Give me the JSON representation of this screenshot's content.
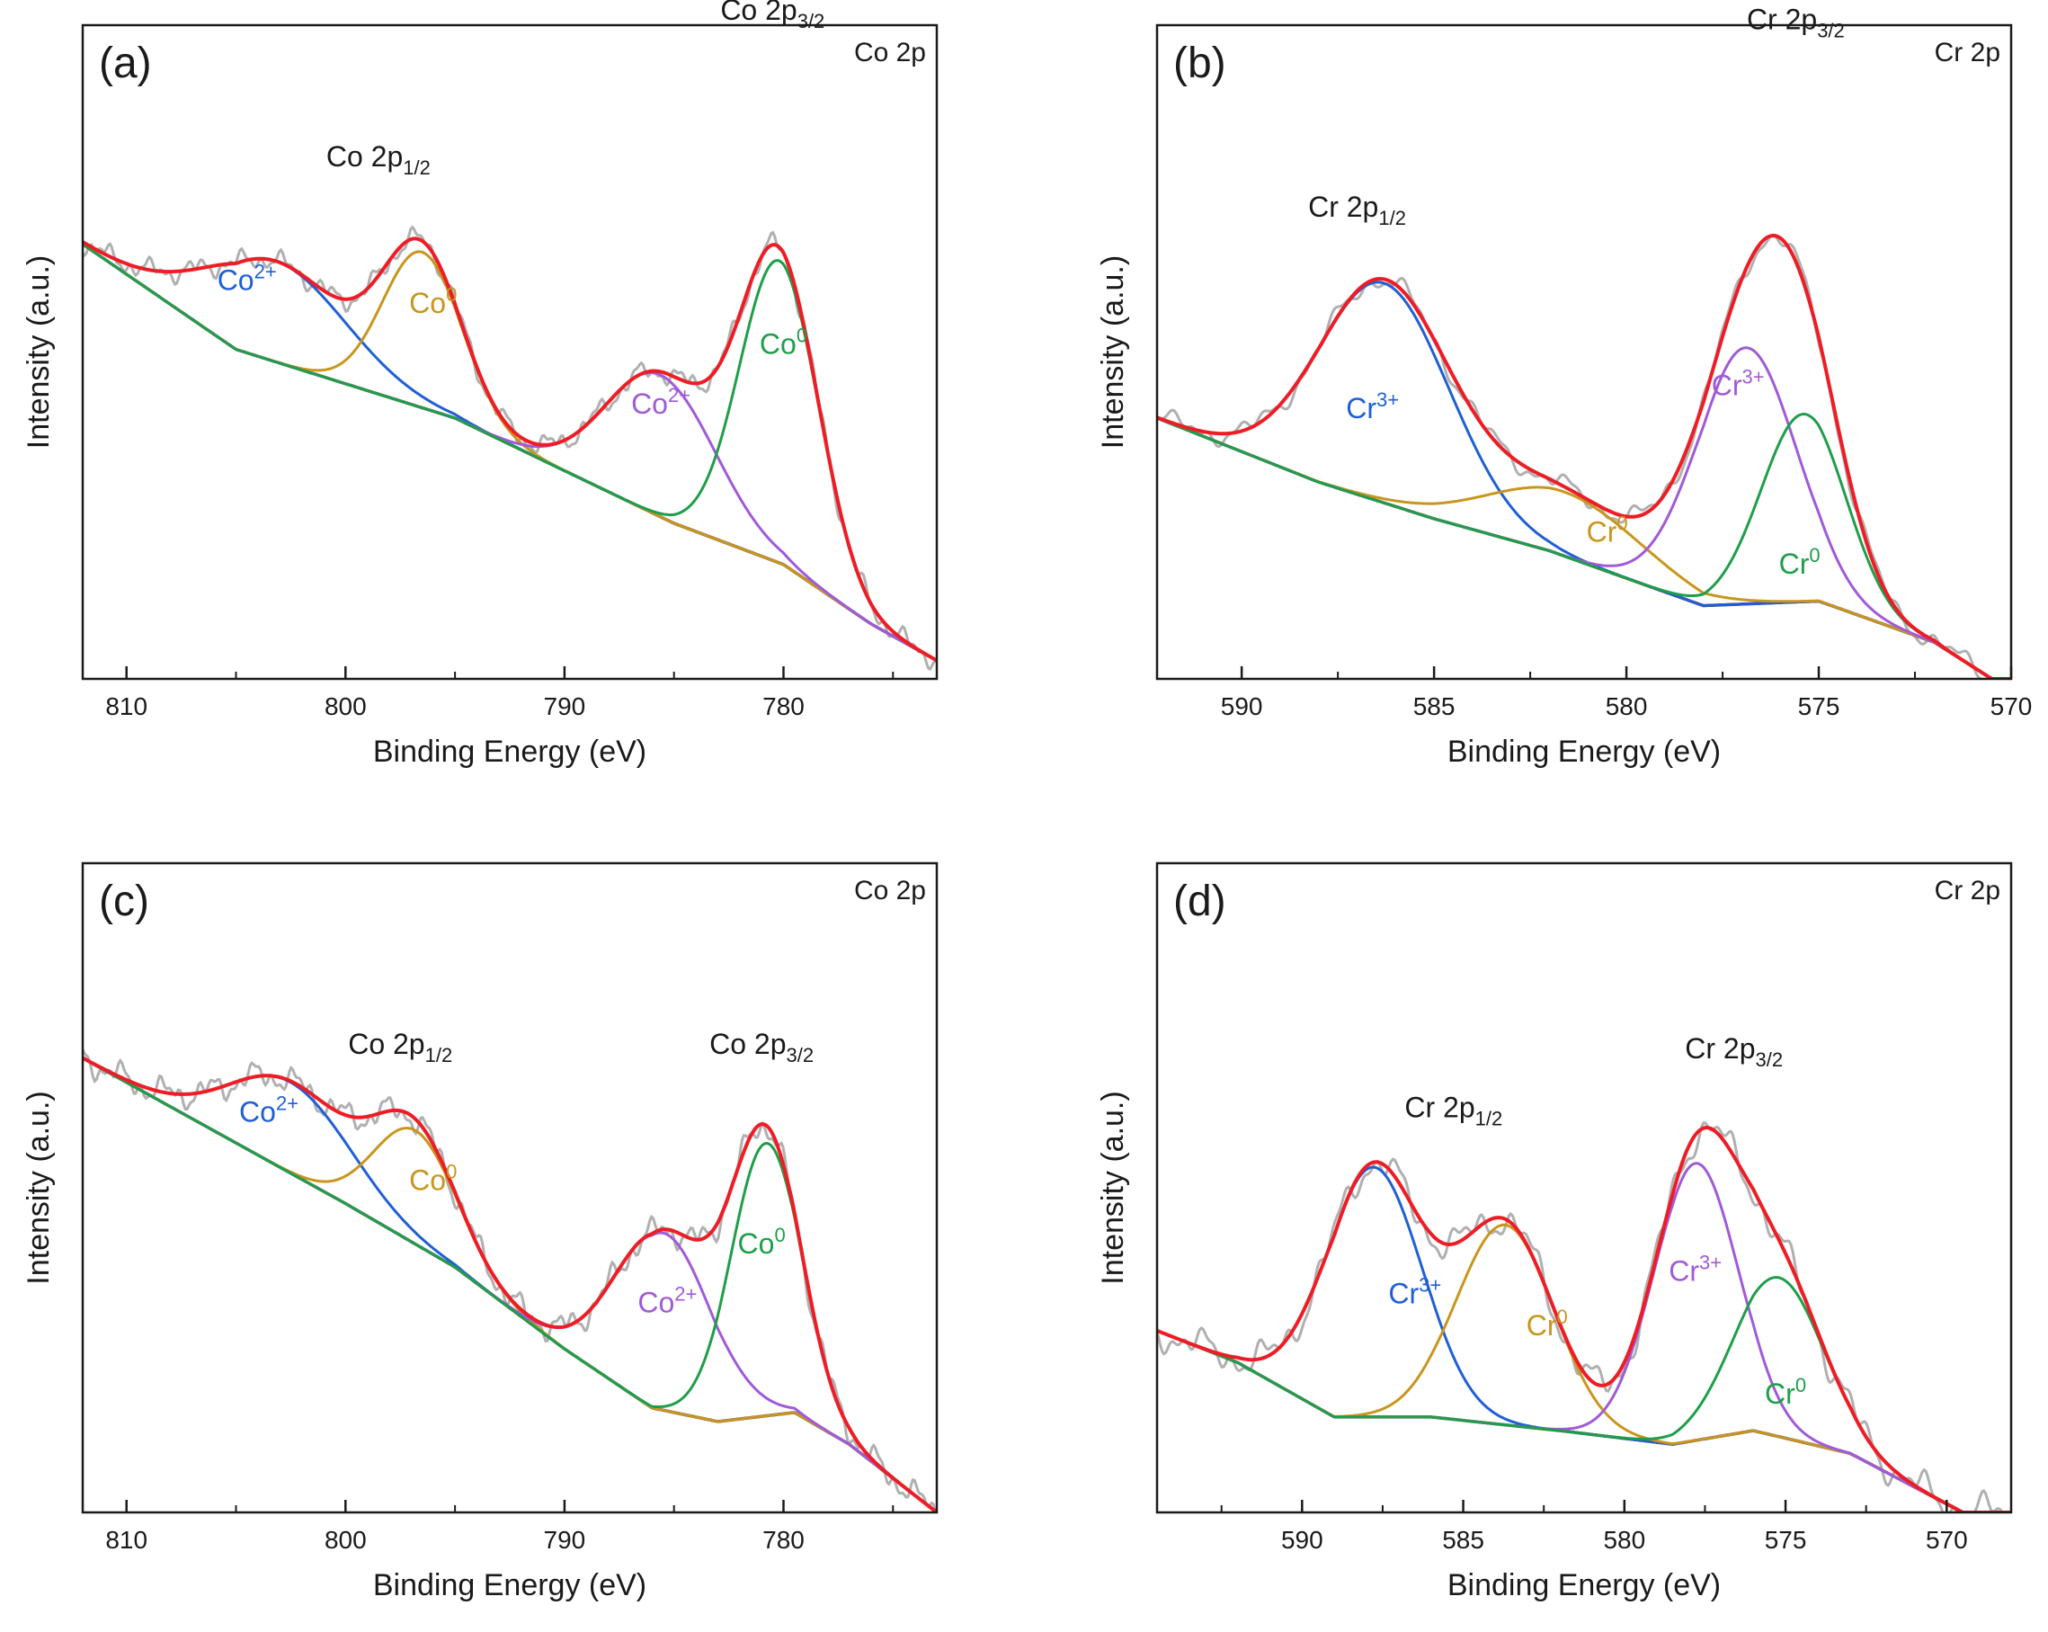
{
  "figure": {
    "colors": {
      "raw": "#b0b0b0",
      "envelope": "#ee1c25",
      "background": "#6b3a3a",
      "blue": "#1f5fd6",
      "orange": "#c8961e",
      "purple": "#a05ad8",
      "green": "#1e9e4a"
    }
  },
  "chart_data": [
    {
      "type": "line",
      "panel": "(a)",
      "corner": "Co 2p",
      "xlabel": "Binding Energy (eV)",
      "ylabel": "Intensity (a.u.)",
      "xlim": [
        812,
        773
      ],
      "ylim": [
        0,
        1
      ],
      "xticks": [
        "810",
        "800",
        "790",
        "780"
      ],
      "xtick_values": [
        810,
        800,
        790,
        780
      ],
      "background": {
        "x": [
          812,
          805,
          795,
          785,
          780,
          776,
          773
        ],
        "y": [
          0.95,
          0.72,
          0.57,
          0.34,
          0.25,
          0.12,
          0.04
        ]
      },
      "raw_noise": 0.03,
      "components": [
        {
          "name": "Co²⁺",
          "color_key": "blue",
          "center": 803.2,
          "height": 0.22,
          "width": 3.2
        },
        {
          "name": "Co⁰",
          "color_key": "orange",
          "center": 796.5,
          "height": 0.34,
          "width": 1.8
        },
        {
          "name": "Co²⁺",
          "color_key": "purple",
          "center": 785.6,
          "height": 0.31,
          "width": 2.5
        },
        {
          "name": "Co⁰",
          "color_key": "green",
          "center": 780.2,
          "height": 0.66,
          "width": 1.8
        }
      ],
      "annotations": [
        {
          "base": "Co 2p",
          "sub": "1/2",
          "sup": "",
          "x": 798.5,
          "y": 1.12,
          "color_key": "text"
        },
        {
          "base": "Co 2p",
          "sub": "3/2",
          "sup": "",
          "x": 780.5,
          "y": 1.44,
          "color_key": "text"
        },
        {
          "base": "Co",
          "sub": "",
          "sup": "2+",
          "x": 804.5,
          "y": 0.85,
          "color_key": "blue"
        },
        {
          "base": "Co",
          "sub": "",
          "sup": "0",
          "x": 796.0,
          "y": 0.8,
          "color_key": "orange"
        },
        {
          "base": "Co",
          "sub": "",
          "sup": "2+",
          "x": 785.6,
          "y": 0.58,
          "color_key": "purple"
        },
        {
          "base": "Co",
          "sub": "",
          "sup": "0",
          "x": 780.0,
          "y": 0.71,
          "color_key": "green"
        }
      ]
    },
    {
      "type": "line",
      "panel": "(b)",
      "corner": "Cr 2p",
      "xlabel": "Binding Energy (eV)",
      "ylabel": "Intensity (a.u.)",
      "xlim": [
        592.2,
        570
      ],
      "ylim": [
        0,
        1
      ],
      "xticks": [
        "590",
        "585",
        "580",
        "575",
        "570"
      ],
      "xtick_values": [
        590,
        585,
        580,
        575,
        570
      ],
      "background": {
        "x": [
          592.2,
          588,
          585,
          582,
          578,
          575,
          572,
          570.5
        ],
        "y": [
          0.57,
          0.43,
          0.35,
          0.28,
          0.16,
          0.17,
          0.08,
          0.0
        ]
      },
      "raw_noise": 0.03,
      "components": [
        {
          "name": "Cr³⁺",
          "color_key": "blue",
          "center": 586.3,
          "height": 0.48,
          "width": 1.7
        },
        {
          "name": "Cr⁰",
          "color_key": "orange",
          "center": 581.6,
          "height": 0.14,
          "width": 2.0
        },
        {
          "name": "Cr³⁺",
          "color_key": "purple",
          "center": 576.9,
          "height": 0.56,
          "width": 1.3
        },
        {
          "name": "Cr⁰",
          "color_key": "green",
          "center": 575.4,
          "height": 0.41,
          "width": 1.1
        }
      ],
      "annotations": [
        {
          "base": "Cr 2p",
          "sub": "1/2",
          "sup": "",
          "x": 587.0,
          "y": 1.01,
          "color_key": "text"
        },
        {
          "base": "Cr 2p",
          "sub": "3/2",
          "sup": "",
          "x": 575.6,
          "y": 1.42,
          "color_key": "text"
        },
        {
          "base": "Cr",
          "sub": "",
          "sup": "3+",
          "x": 586.6,
          "y": 0.57,
          "color_key": "blue"
        },
        {
          "base": "Cr",
          "sub": "",
          "sup": "0",
          "x": 580.5,
          "y": 0.3,
          "color_key": "orange"
        },
        {
          "base": "Cr",
          "sub": "",
          "sup": "3+",
          "x": 577.1,
          "y": 0.62,
          "color_key": "purple"
        },
        {
          "base": "Cr",
          "sub": "",
          "sup": "0",
          "x": 575.5,
          "y": 0.23,
          "color_key": "green"
        }
      ]
    },
    {
      "type": "line",
      "panel": "(c)",
      "corner": "Co 2p",
      "xlabel": "Binding Energy (eV)",
      "ylabel": "Intensity (a.u.)",
      "xlim": [
        812,
        773
      ],
      "ylim": [
        0,
        1
      ],
      "xticks": [
        "810",
        "800",
        "790",
        "780"
      ],
      "xtick_values": [
        810,
        800,
        790,
        780
      ],
      "background": {
        "x": [
          812,
          806,
          800,
          795,
          790,
          786,
          783,
          779.5,
          777,
          773
        ],
        "y": [
          1.0,
          0.84,
          0.68,
          0.54,
          0.36,
          0.23,
          0.2,
          0.22,
          0.15,
          0.0
        ]
      },
      "raw_noise": 0.04,
      "components": [
        {
          "name": "Co²⁺",
          "color_key": "blue",
          "center": 802.5,
          "height": 0.2,
          "width": 2.8
        },
        {
          "name": "Co⁰",
          "color_key": "orange",
          "center": 796.8,
          "height": 0.25,
          "width": 1.9
        },
        {
          "name": "Co²⁺",
          "color_key": "purple",
          "center": 785.5,
          "height": 0.39,
          "width": 2.2
        },
        {
          "name": "Co⁰",
          "color_key": "green",
          "center": 780.8,
          "height": 0.6,
          "width": 1.6
        }
      ],
      "annotations": [
        {
          "base": "Co 2p",
          "sub": "1/2",
          "sup": "",
          "x": 797.5,
          "y": 1.01,
          "color_key": "text"
        },
        {
          "base": "Co 2p",
          "sub": "3/2",
          "sup": "",
          "x": 781.0,
          "y": 1.01,
          "color_key": "text"
        },
        {
          "base": "Co",
          "sub": "",
          "sup": "2+",
          "x": 803.5,
          "y": 0.86,
          "color_key": "blue"
        },
        {
          "base": "Co",
          "sub": "",
          "sup": "0",
          "x": 796.0,
          "y": 0.71,
          "color_key": "orange"
        },
        {
          "base": "Co",
          "sub": "",
          "sup": "2+",
          "x": 785.3,
          "y": 0.44,
          "color_key": "purple"
        },
        {
          "base": "Co",
          "sub": "",
          "sup": "0",
          "x": 781.0,
          "y": 0.57,
          "color_key": "green"
        }
      ]
    },
    {
      "type": "line",
      "panel": "(d)",
      "corner": "Cr 2p",
      "xlabel": "Binding Energy (eV)",
      "ylabel": "Intensity (a.u.)",
      "xlim": [
        594.5,
        568
      ],
      "ylim": [
        0,
        1
      ],
      "xticks": [
        "590",
        "585",
        "580",
        "575",
        "570"
      ],
      "xtick_values": [
        590,
        585,
        580,
        575,
        570
      ],
      "background": {
        "x": [
          594.5,
          592,
          589,
          586,
          582,
          578.5,
          576,
          573,
          569.5
        ],
        "y": [
          0.4,
          0.33,
          0.21,
          0.21,
          0.18,
          0.15,
          0.18,
          0.13,
          0.0
        ]
      },
      "raw_noise": 0.05,
      "components": [
        {
          "name": "Cr³⁺",
          "color_key": "blue",
          "center": 587.8,
          "height": 0.55,
          "width": 1.5
        },
        {
          "name": "Cr⁰",
          "color_key": "orange",
          "center": 583.7,
          "height": 0.44,
          "width": 1.5
        },
        {
          "name": "Cr³⁺",
          "color_key": "purple",
          "center": 577.8,
          "height": 0.61,
          "width": 1.3
        },
        {
          "name": "Cr⁰",
          "color_key": "green",
          "center": 575.2,
          "height": 0.35,
          "width": 1.4
        }
      ],
      "annotations": [
        {
          "base": "Cr 2p",
          "sub": "1/2",
          "sup": "",
          "x": 585.3,
          "y": 0.87,
          "color_key": "text"
        },
        {
          "base": "Cr 2p",
          "sub": "3/2",
          "sup": "",
          "x": 576.6,
          "y": 1.0,
          "color_key": "text"
        },
        {
          "base": "Cr",
          "sub": "",
          "sup": "3+",
          "x": 586.5,
          "y": 0.46,
          "color_key": "blue"
        },
        {
          "base": "Cr",
          "sub": "",
          "sup": "0",
          "x": 582.4,
          "y": 0.39,
          "color_key": "orange"
        },
        {
          "base": "Cr",
          "sub": "",
          "sup": "3+",
          "x": 577.8,
          "y": 0.51,
          "color_key": "purple"
        },
        {
          "base": "Cr",
          "sub": "",
          "sup": "0",
          "x": 575.0,
          "y": 0.24,
          "color_key": "green"
        }
      ]
    }
  ]
}
